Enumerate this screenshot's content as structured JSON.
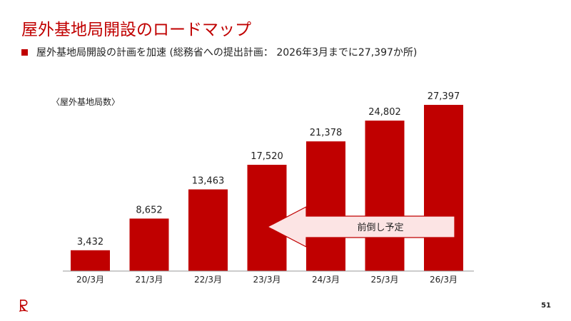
{
  "slide": {
    "title": "屋外基地局開設のロードマップ",
    "bullet": "屋外基地局開設の計画を加速 (総務省への提出計画： 2026年3月までに27,397か所)",
    "page_number": "51",
    "accent_color": "#c00000"
  },
  "chart_data": {
    "type": "bar",
    "unit_label": "〈屋外基地局数〉",
    "categories": [
      "20/3月",
      "21/3月",
      "22/3月",
      "23/3月",
      "24/3月",
      "25/3月",
      "26/3月"
    ],
    "values": [
      3432,
      8652,
      13463,
      17520,
      21378,
      24802,
      27397
    ],
    "data_labels": [
      "3,432",
      "8,652",
      "13,463",
      "17,520",
      "21,378",
      "24,802",
      "27,397"
    ],
    "bar_color": "#c00000",
    "ylim": [
      0,
      27397
    ],
    "grid": false,
    "annotation": {
      "text": "前倒し予定",
      "direction": "left",
      "fill": "#fce4e4",
      "stroke": "#c00000"
    }
  }
}
